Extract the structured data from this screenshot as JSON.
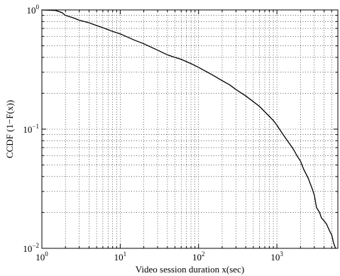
{
  "chart_data": {
    "type": "line",
    "xlabel": "Video session duration x(sec)",
    "ylabel": "CCDF (1−F(x))",
    "x_scale": "log",
    "y_scale": "log",
    "xlim": [
      1,
      6000
    ],
    "ylim": [
      0.01,
      1
    ],
    "grid": true,
    "x_ticks": [
      {
        "value": 1,
        "base": "10",
        "exp": "0"
      },
      {
        "value": 10,
        "base": "10",
        "exp": "1"
      },
      {
        "value": 100,
        "base": "10",
        "exp": "2"
      },
      {
        "value": 1000,
        "base": "10",
        "exp": "3"
      }
    ],
    "y_ticks": [
      {
        "value": 1,
        "base": "10",
        "exp": "0"
      },
      {
        "value": 0.1,
        "base": "10",
        "exp": "−1"
      },
      {
        "value": 0.01,
        "base": "10",
        "exp": "−2"
      }
    ],
    "series": [
      {
        "x": [
          1,
          1.5,
          1.8,
          2,
          2.5,
          3,
          4,
          5,
          6,
          8,
          10,
          15,
          20,
          30,
          40,
          50,
          60,
          80,
          100,
          130,
          150,
          200,
          250,
          300,
          400,
          500,
          600,
          700,
          800,
          900,
          1000,
          1100,
          1200,
          1400,
          1600,
          1800,
          2000,
          2200,
          2500,
          2800,
          3000,
          3200,
          3500,
          3700,
          4000,
          4300,
          4700,
          5000,
          5300,
          5600
        ],
        "y": [
          1,
          0.99,
          0.95,
          0.9,
          0.86,
          0.82,
          0.78,
          0.74,
          0.71,
          0.66,
          0.63,
          0.56,
          0.52,
          0.46,
          0.42,
          0.4,
          0.385,
          0.355,
          0.33,
          0.3,
          0.285,
          0.255,
          0.235,
          0.215,
          0.19,
          0.17,
          0.155,
          0.14,
          0.128,
          0.118,
          0.108,
          0.098,
          0.09,
          0.078,
          0.069,
          0.06,
          0.054,
          0.046,
          0.039,
          0.032,
          0.028,
          0.022,
          0.02,
          0.018,
          0.017,
          0.016,
          0.014,
          0.013,
          0.011,
          0.0095
        ]
      }
    ]
  }
}
